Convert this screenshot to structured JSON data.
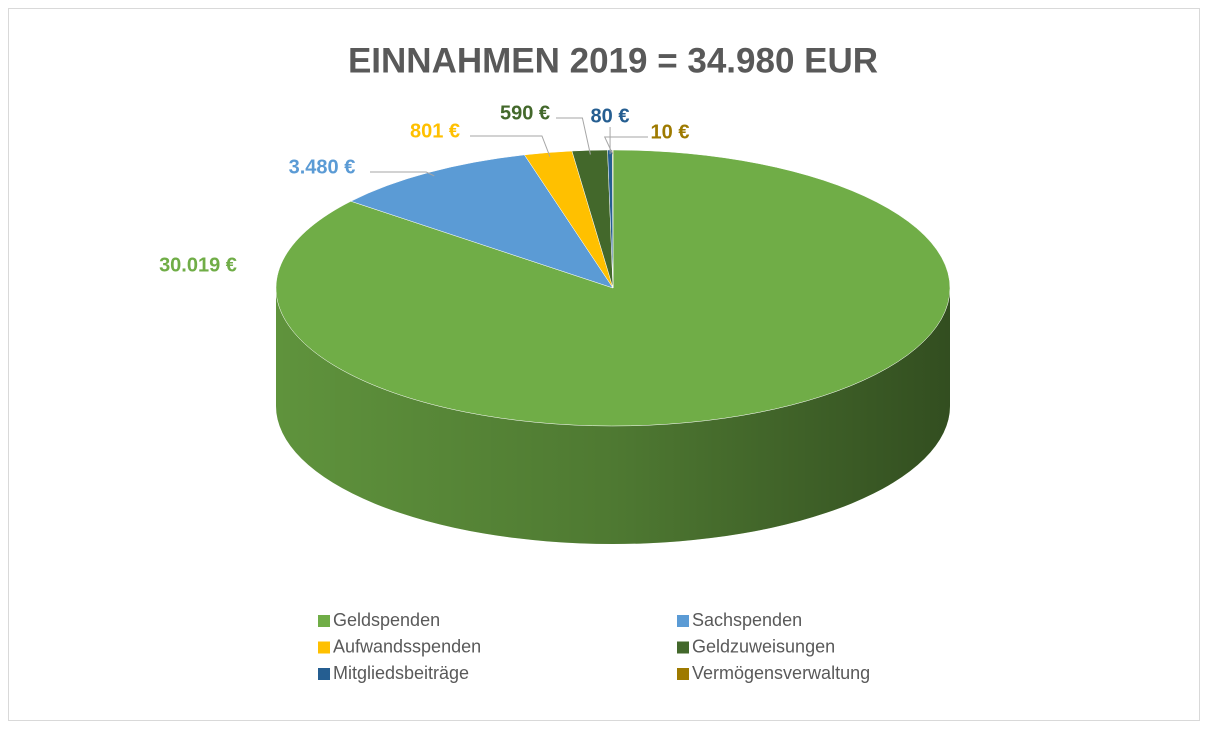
{
  "chart_data": {
    "type": "pie",
    "title": "EINNAHMEN 2019 = 34.980 EUR",
    "categories": [
      "Geldspenden",
      "Sachspenden",
      "Aufwandsspenden",
      "Geldzuweisungen",
      "Mitgliedsbeiträge",
      "Vermögensverwaltung"
    ],
    "values": [
      30019,
      3480,
      801,
      590,
      80,
      10
    ],
    "value_labels": [
      "30.019 €",
      "3.480 €",
      "801 €",
      "590 €",
      "80 €",
      "10 €"
    ],
    "colors": [
      "#70ad47",
      "#5b9bd5",
      "#ffc000",
      "#43682b",
      "#255e91",
      "#9e7a00"
    ],
    "legend": "bottom"
  }
}
